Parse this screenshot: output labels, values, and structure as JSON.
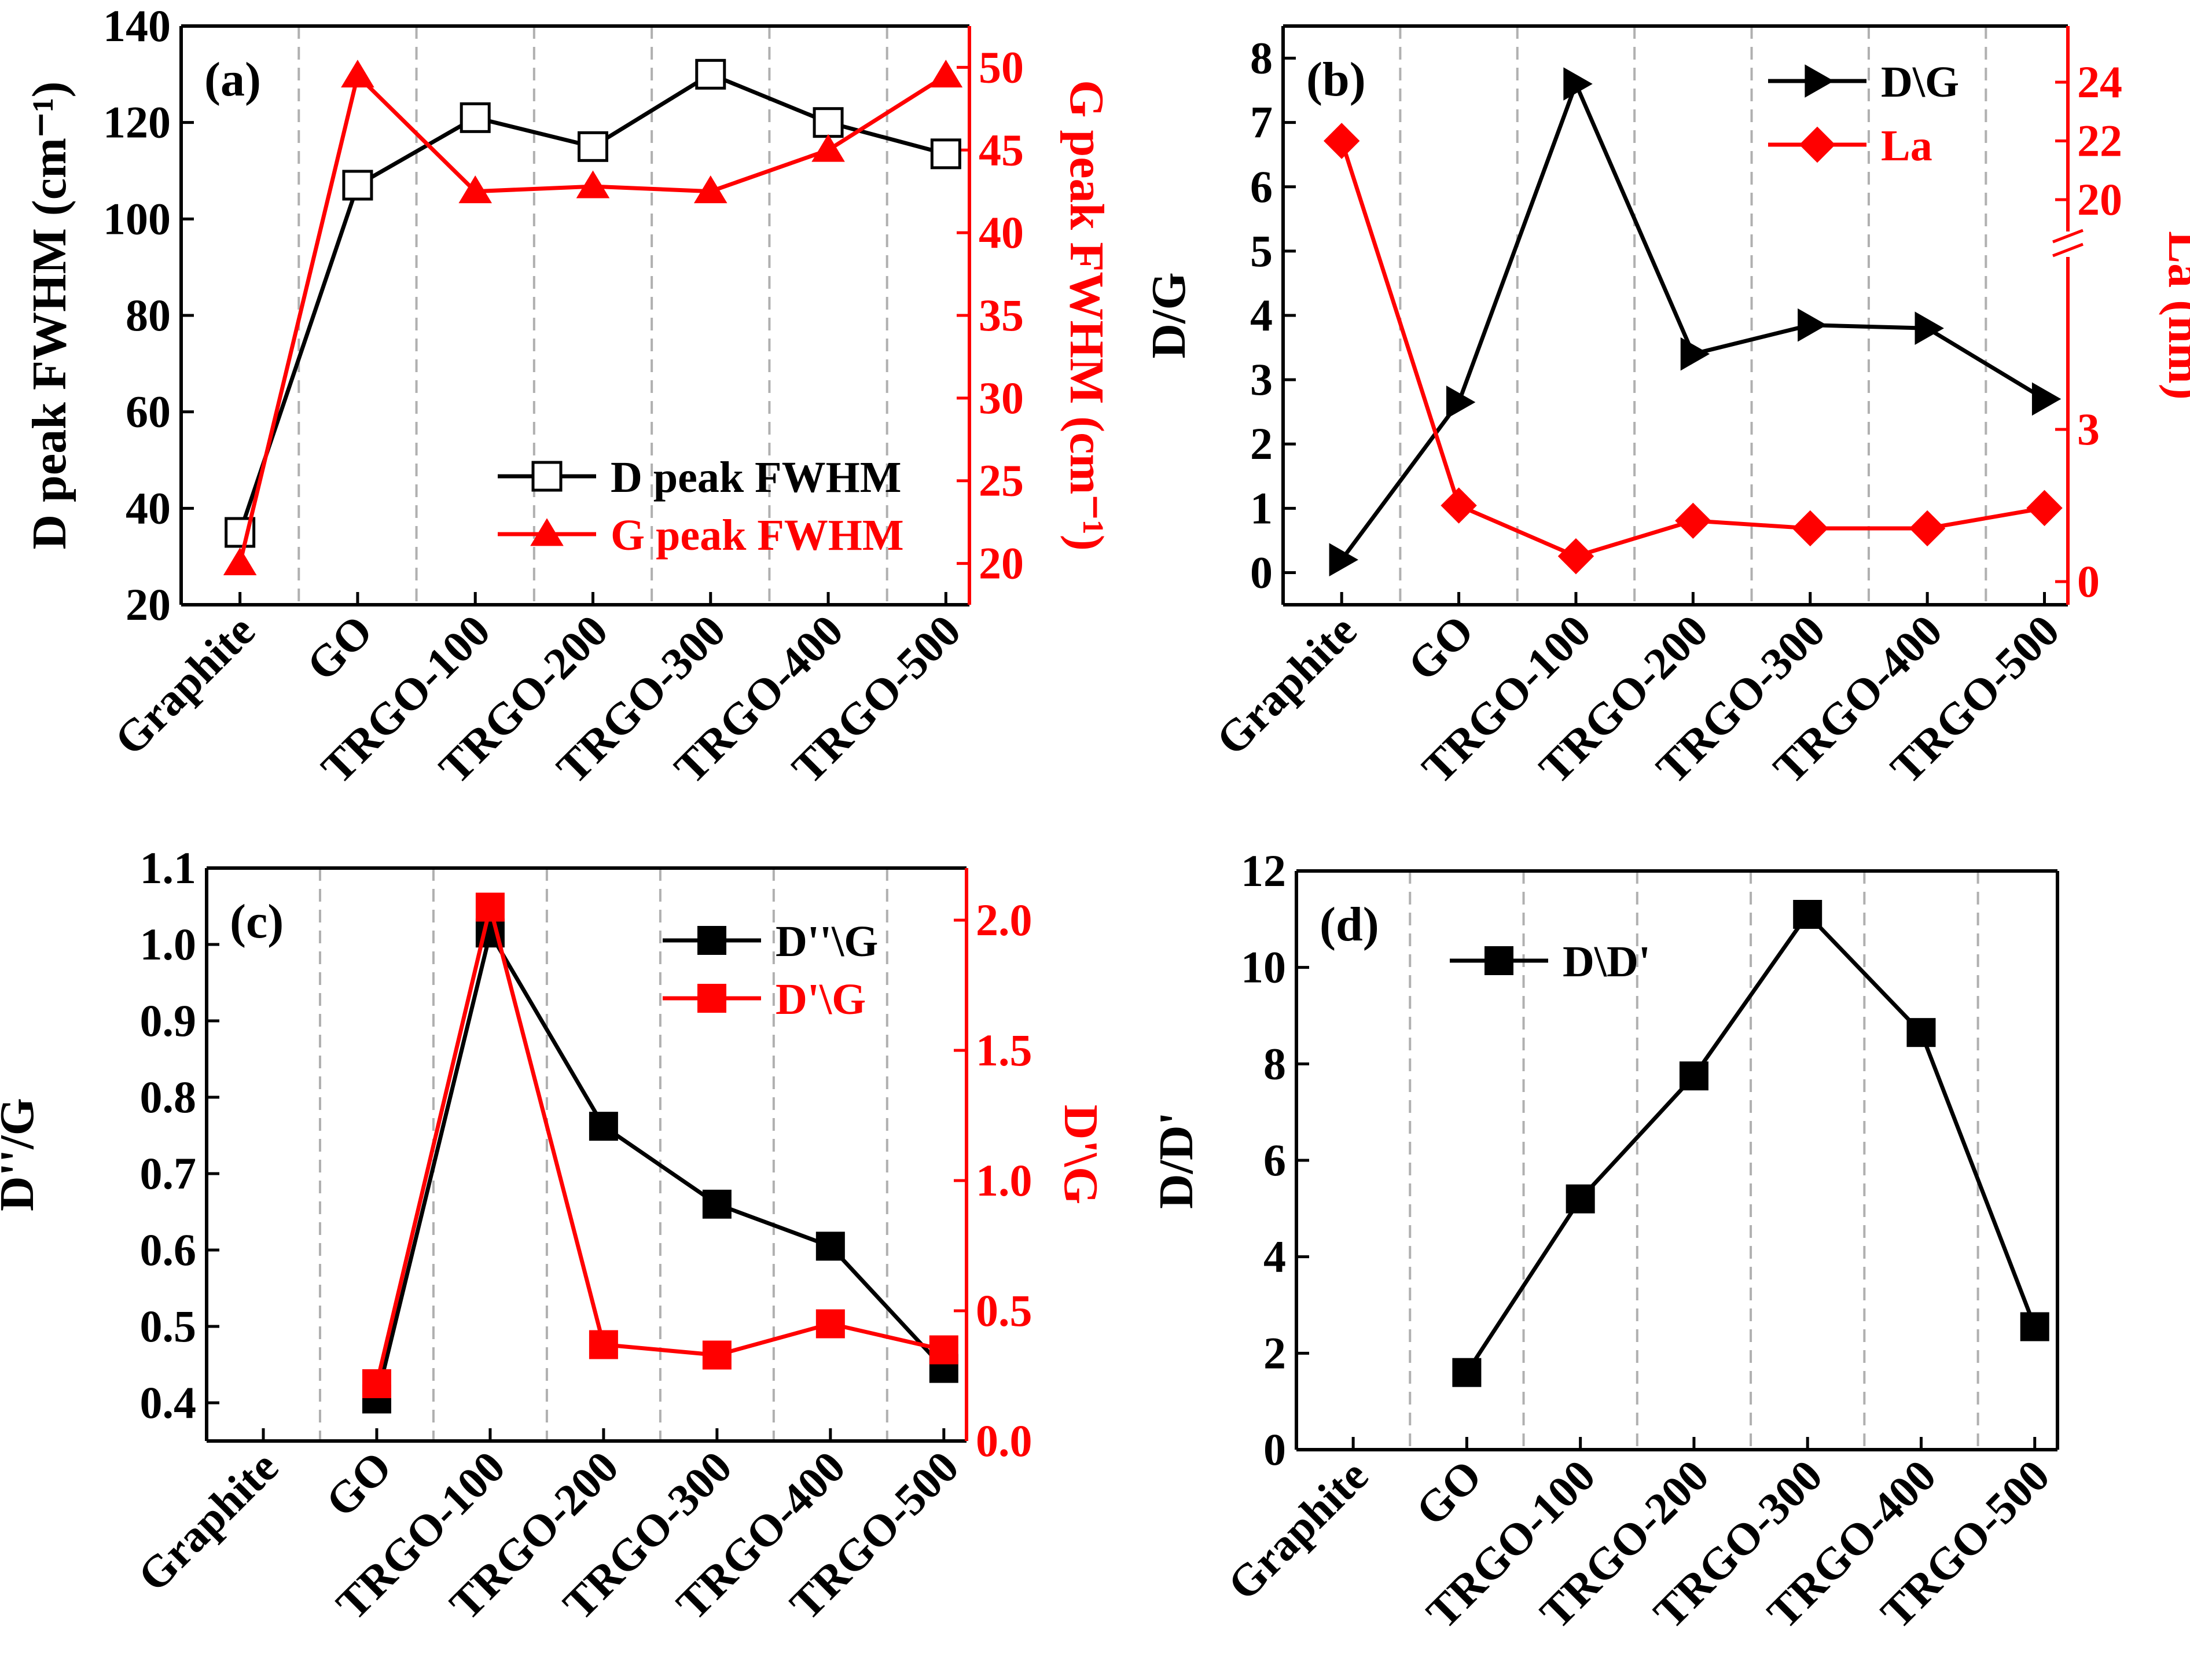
{
  "figure": {
    "colors": {
      "black": "#000000",
      "red": "#ff0000",
      "grid": "#b0b0b0"
    }
  },
  "chart_data": [
    {
      "panel": "(a)",
      "type": "line",
      "categories": [
        "Graphite",
        "GO",
        "TRGO-100",
        "TRGO-200",
        "TRGO-300",
        "TRGO-400",
        "TRGO-500"
      ],
      "ylabel": "D peak FWHM (cm⁻¹)",
      "ylabel_right": "G peak FWHM (cm⁻¹)",
      "ylim": [
        20,
        140
      ],
      "yticks": [
        20,
        40,
        60,
        80,
        100,
        120,
        140
      ],
      "ylim_right": [
        17.5,
        52.5
      ],
      "yticks_right": [
        20,
        25,
        30,
        35,
        40,
        45,
        50
      ],
      "legend_position": "bottom-right",
      "series": [
        {
          "name": "D peak FWHM",
          "axis": "left",
          "color": "#000000",
          "marker": "open-square",
          "values": [
            35,
            107,
            121,
            115,
            130,
            120,
            113.5
          ]
        },
        {
          "name": "G peak FWHM",
          "axis": "right",
          "color": "#ff0000",
          "marker": "filled-triangle",
          "values": [
            20,
            49.5,
            42.5,
            42.8,
            42.5,
            45,
            49.5
          ]
        }
      ]
    },
    {
      "panel": "(b)",
      "type": "line",
      "categories": [
        "Graphite",
        "GO",
        "TRGO-100",
        "TRGO-200",
        "TRGO-300",
        "TRGO-400",
        "TRGO-500"
      ],
      "ylabel": "D/G",
      "ylabel_right": "La (nm)",
      "ylim": [
        -0.5,
        8.5
      ],
      "yticks": [
        0,
        1,
        2,
        3,
        4,
        5,
        6,
        7,
        8
      ],
      "yticks_right": [
        0,
        3,
        20,
        22,
        24
      ],
      "right_axis_break": "between 3 and 20",
      "legend_position": "top-right",
      "series": [
        {
          "name": "D\\G",
          "axis": "left",
          "color": "#000000",
          "marker": "filled-right-triangle",
          "values": [
            0.2,
            2.65,
            7.6,
            3.4,
            3.85,
            3.8,
            2.7
          ]
        },
        {
          "name": "La",
          "axis": "right",
          "color": "#ff0000",
          "marker": "filled-diamond",
          "values": [
            22,
            1.5,
            0.5,
            1.2,
            1.05,
            1.05,
            1.45
          ]
        }
      ]
    },
    {
      "panel": "(c)",
      "type": "line",
      "categories": [
        "Graphite",
        "GO",
        "TRGO-100",
        "TRGO-200",
        "TRGO-300",
        "TRGO-400",
        "TRGO-500"
      ],
      "ylabel": "D''/G",
      "ylabel_right": "D'\\G",
      "ylim": [
        0.35,
        1.1
      ],
      "yticks": [
        0.4,
        0.5,
        0.6,
        0.7,
        0.8,
        0.9,
        1.0,
        1.1
      ],
      "ylim_right": [
        0,
        2.2
      ],
      "yticks_right": [
        0.0,
        0.5,
        1.0,
        1.5,
        2.0
      ],
      "legend_position": "top-right",
      "series": [
        {
          "name": "D''\\G",
          "axis": "left",
          "color": "#000000",
          "marker": "filled-square",
          "values": [
            null,
            0.405,
            1.015,
            0.762,
            0.66,
            0.605,
            0.445
          ]
        },
        {
          "name": "D'\\G",
          "axis": "right",
          "color": "#ff0000",
          "marker": "filled-square",
          "values": [
            null,
            0.22,
            2.05,
            0.37,
            0.33,
            0.45,
            0.35
          ]
        }
      ]
    },
    {
      "panel": "(d)",
      "type": "line",
      "categories": [
        "Graphite",
        "GO",
        "TRGO-100",
        "TRGO-200",
        "TRGO-300",
        "TRGO-400",
        "TRGO-500"
      ],
      "ylabel": "D/D'",
      "ylim": [
        0,
        12
      ],
      "yticks": [
        0,
        2,
        4,
        6,
        8,
        10,
        12
      ],
      "legend_position": "top-left",
      "series": [
        {
          "name": "D\\D'",
          "axis": "left",
          "color": "#000000",
          "marker": "filled-square",
          "values": [
            null,
            1.6,
            5.2,
            7.75,
            11.1,
            8.65,
            2.55
          ]
        }
      ]
    }
  ]
}
